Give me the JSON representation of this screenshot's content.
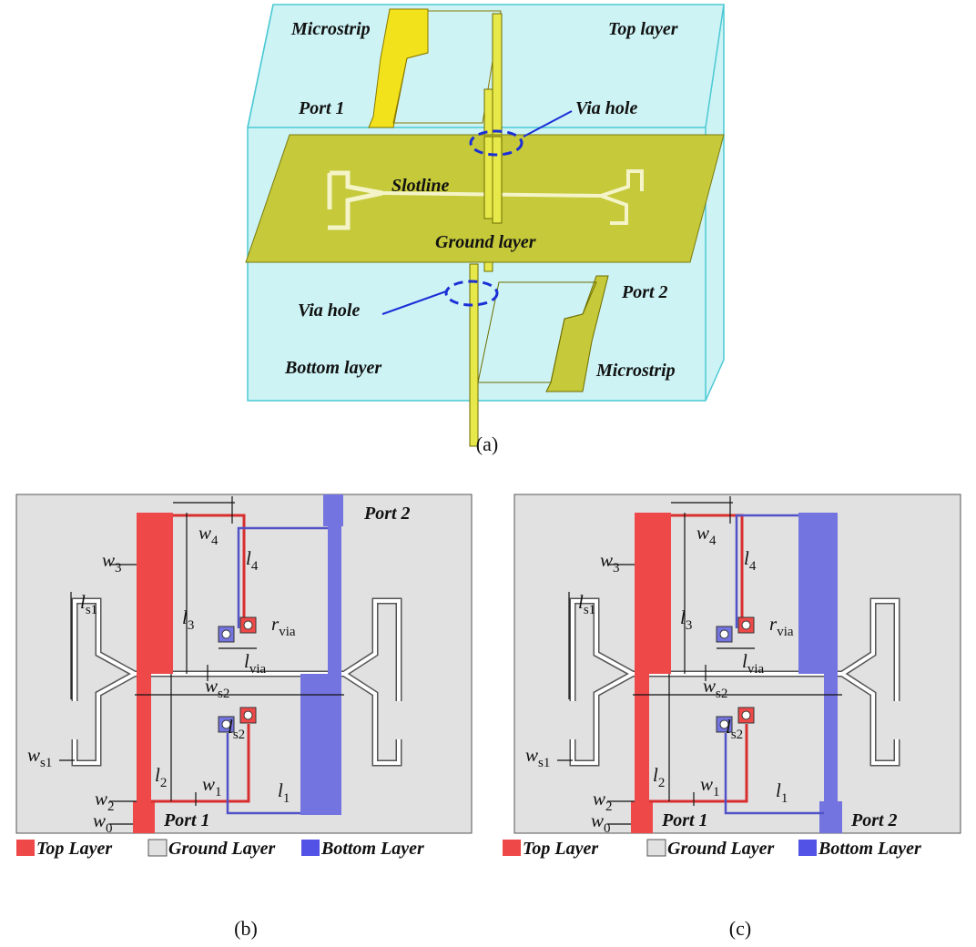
{
  "panel_a": {
    "labels": [
      "Microstrip",
      "Top layer",
      "Port 1",
      "Via hole",
      "Slotline",
      "Ground layer",
      "Port 2",
      "Via hole",
      "Bottom layer",
      "Microstrip"
    ],
    "caption": "(a)"
  },
  "panel_b": {
    "dims": [
      {
        "base": "w",
        "sub": "4"
      },
      {
        "base": "l",
        "sub": "4"
      },
      {
        "base": "w",
        "sub": "3"
      },
      {
        "base": "l",
        "sub": "3"
      },
      {
        "base": "l",
        "sub": "s1"
      },
      {
        "base": "r",
        "sub": "via"
      },
      {
        "base": "l",
        "sub": "via"
      },
      {
        "base": "w",
        "sub": "s2"
      },
      {
        "base": "l",
        "sub": "s2"
      },
      {
        "base": "w",
        "sub": "s1"
      },
      {
        "base": "l",
        "sub": "2"
      },
      {
        "base": "w",
        "sub": "2"
      },
      {
        "base": "w",
        "sub": "1"
      },
      {
        "base": "l",
        "sub": "1"
      },
      {
        "base": "w",
        "sub": "0"
      }
    ],
    "ports": [
      "Port 2",
      "Port 1"
    ],
    "legend": [
      "Top Layer",
      "Ground Layer",
      "Bottom Layer"
    ],
    "caption": "(b)"
  },
  "panel_c": {
    "dims": [
      {
        "base": "w",
        "sub": "4"
      },
      {
        "base": "l",
        "sub": "4"
      },
      {
        "base": "w",
        "sub": "3"
      },
      {
        "base": "l",
        "sub": "3"
      },
      {
        "base": "l",
        "sub": "s1"
      },
      {
        "base": "r",
        "sub": "via"
      },
      {
        "base": "l",
        "sub": "via"
      },
      {
        "base": "w",
        "sub": "s2"
      },
      {
        "base": "l",
        "sub": "s2"
      },
      {
        "base": "w",
        "sub": "s1"
      },
      {
        "base": "l",
        "sub": "2"
      },
      {
        "base": "w",
        "sub": "2"
      },
      {
        "base": "w",
        "sub": "1"
      },
      {
        "base": "l",
        "sub": "1"
      },
      {
        "base": "w",
        "sub": "0"
      }
    ],
    "ports": [
      "Port 2",
      "Port 1"
    ],
    "legend": [
      "Top Layer",
      "Ground Layer",
      "Bottom Layer"
    ],
    "caption": "(c)"
  }
}
